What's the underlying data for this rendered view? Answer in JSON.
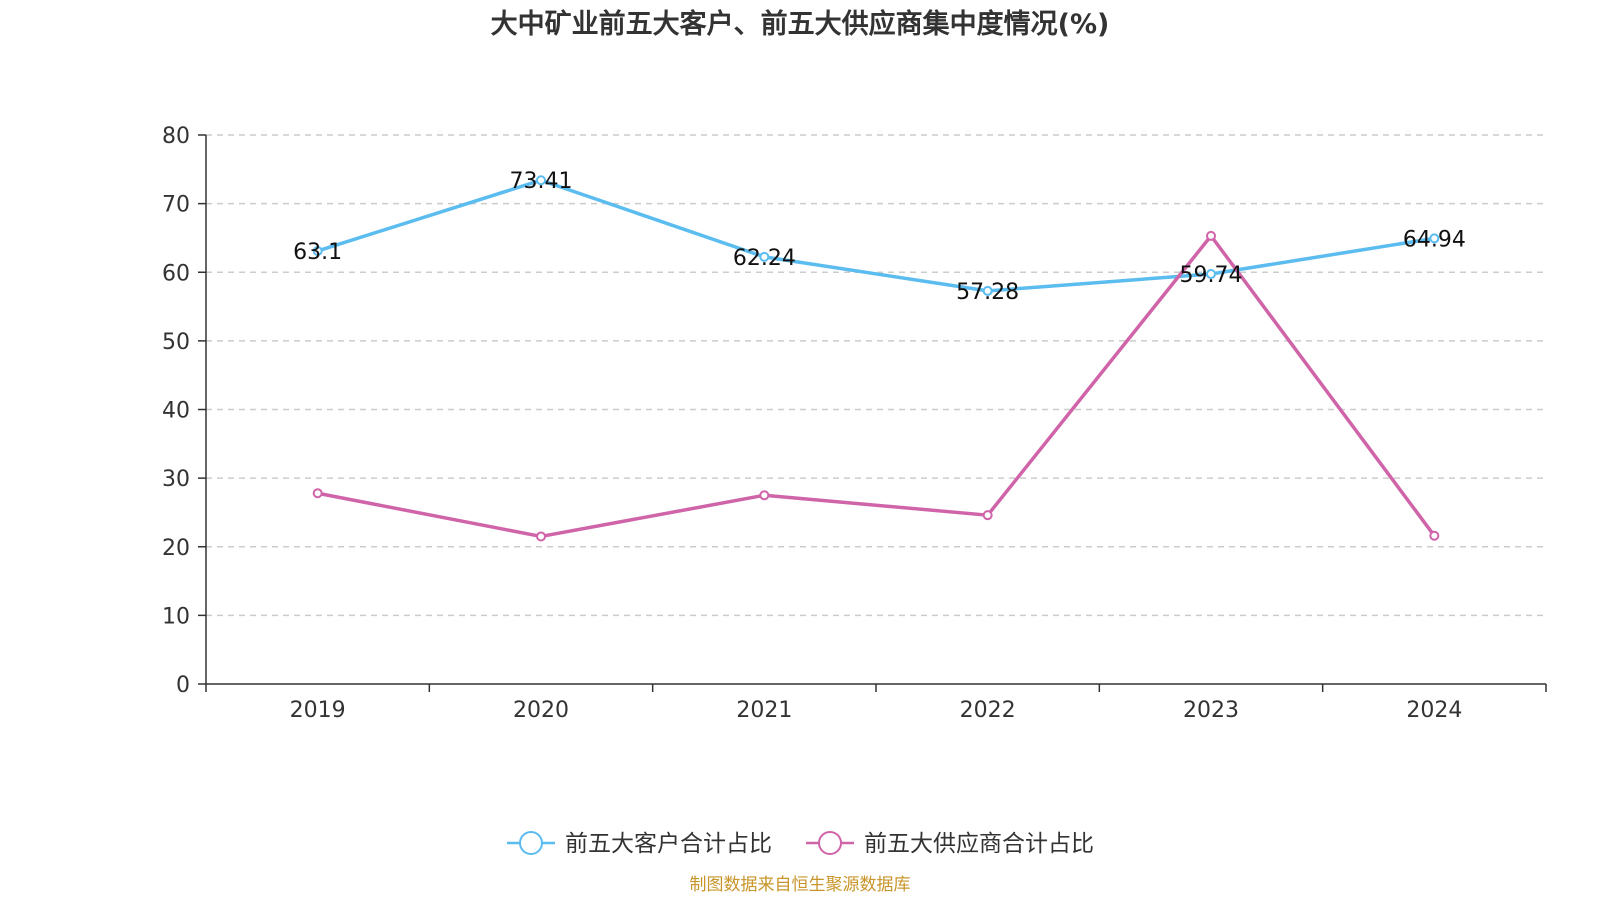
{
  "chart_data": {
    "type": "line",
    "title": "大中矿业前五大客户、前五大供应商集中度情况(%)",
    "x": [
      "2019",
      "2020",
      "2021",
      "2022",
      "2023",
      "2024"
    ],
    "ylim": [
      0,
      80
    ],
    "yticks": [
      0,
      10,
      20,
      30,
      40,
      50,
      60,
      70,
      80
    ],
    "grid": true,
    "legend_position": "bottom-center",
    "series": [
      {
        "name": "前五大客户合计占比",
        "color": "#5bbcf0",
        "values": [
          63.1,
          73.41,
          62.24,
          57.28,
          59.74,
          64.94
        ],
        "labels": [
          "63.1",
          "73.41",
          "62.24",
          "57.28",
          "59.74",
          "64.94"
        ]
      },
      {
        "name": "前五大供应商合计占比",
        "color": "#d064a8",
        "values": [
          27.8,
          21.5,
          27.5,
          24.6,
          65.3,
          21.6
        ]
      }
    ]
  },
  "source_text": "制图数据来自恒生聚源数据库"
}
